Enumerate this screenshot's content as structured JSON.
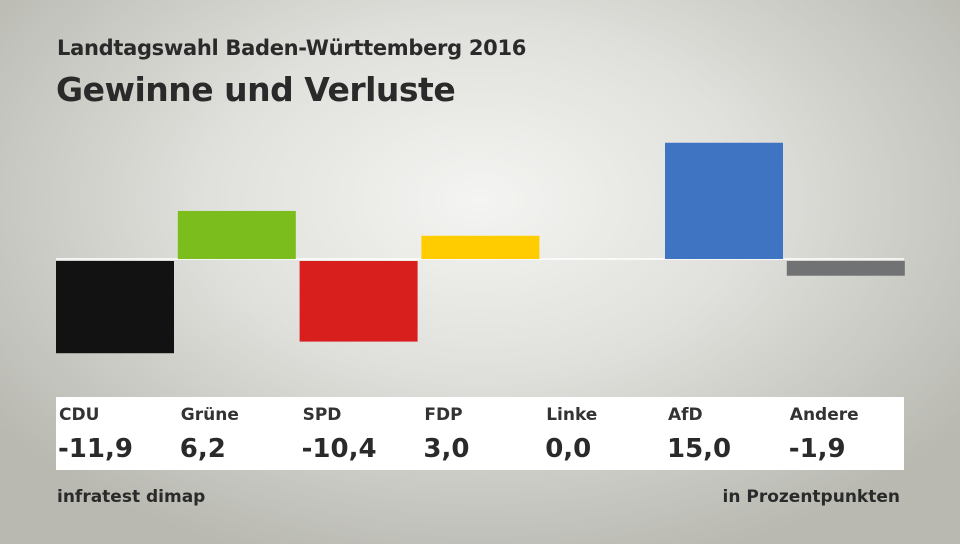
{
  "chart_data": {
    "type": "bar",
    "subtitle": "Landtagswahl Baden-Württemberg 2016",
    "title": "Gewinne und Verluste",
    "categories": [
      "CDU",
      "Grüne",
      "SPD",
      "FDP",
      "Linke",
      "AfD",
      "Andere"
    ],
    "values": [
      -11.9,
      6.2,
      -10.4,
      3.0,
      0.0,
      15.0,
      -1.9
    ],
    "value_labels": [
      "-11,9",
      "6,2",
      "-10,4",
      "3,0",
      "0,0",
      "15,0",
      "-1,9"
    ],
    "colors": [
      "#121212",
      "#7abd1c",
      "#d91e1e",
      "#ffcc00",
      "#c0007a",
      "#3f74c3",
      "#707274"
    ],
    "source": "infratest dimap",
    "unit": "in Prozentpunkten",
    "grid": false
  }
}
